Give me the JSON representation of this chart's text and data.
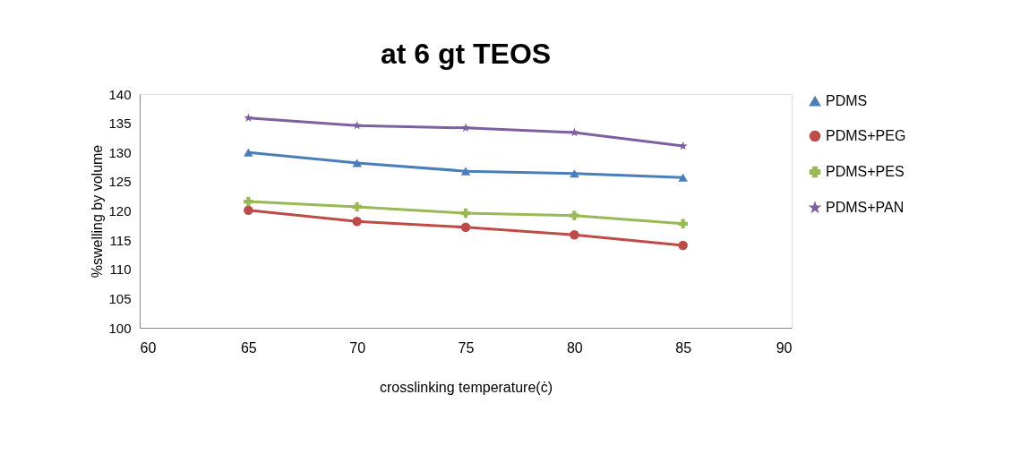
{
  "chart_data": {
    "type": "line",
    "title": "at 6 gt TEOS",
    "xlabel": "crosslinking temperature(ċ)",
    "ylabel": "%swelling by volume",
    "x": [
      65,
      70,
      75,
      80,
      85
    ],
    "series": [
      {
        "name": "PDMS",
        "color": "#4a7ebb",
        "marker": "triangle",
        "values": [
          130.0,
          128.2,
          126.8,
          126.4,
          125.7
        ]
      },
      {
        "name": "PDMS+PEG",
        "color": "#be4b48",
        "marker": "circle",
        "values": [
          120.1,
          118.2,
          117.2,
          115.9,
          114.1
        ]
      },
      {
        "name": "PDMS+PES",
        "color": "#98b954",
        "marker": "cross",
        "values": [
          121.6,
          120.7,
          119.6,
          119.2,
          117.8
        ]
      },
      {
        "name": "PDMS+PAN",
        "color": "#7d60a0",
        "marker": "star",
        "values": [
          135.9,
          134.6,
          134.2,
          133.4,
          131.1
        ]
      }
    ],
    "xlim": [
      60,
      90
    ],
    "xticks": [
      60,
      65,
      70,
      75,
      80,
      85,
      90
    ],
    "ylim": [
      100,
      140
    ],
    "yticks": [
      100,
      105,
      110,
      115,
      120,
      125,
      130,
      135,
      140
    ],
    "grid": false,
    "legend": "right",
    "line_style": "solid"
  }
}
